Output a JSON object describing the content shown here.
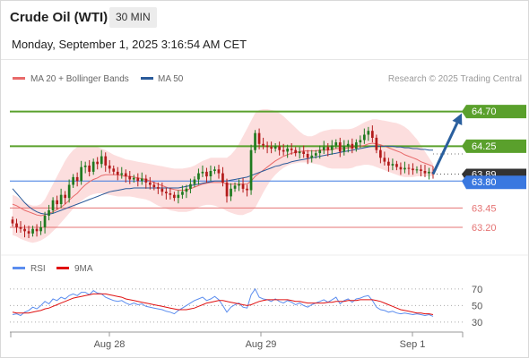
{
  "header": {
    "title": "Crude Oil (WTI)",
    "timeframe": "30 MIN",
    "datetime": "Monday, September 1, 2025 3:16:54 AM CET"
  },
  "colors": {
    "ma20": "#e86a6a",
    "ma50": "#2a5a9a",
    "bands_fill": "#fbd3d3",
    "resistance": "#5aa02c",
    "support_blue": "#3a78e0",
    "support_red": "#e57373",
    "candle_up": "#1f7a1f",
    "candle_down": "#b31b1b",
    "rsi": "#5b8def",
    "rsi_ma": "#e01010",
    "arrow": "#2a5f9e",
    "price_tag": "#333333"
  },
  "chart_data": [
    {
      "type": "candlestick",
      "legend": [
        {
          "label": "MA 20 + Bollinger Bands",
          "color": "#e86a6a"
        },
        {
          "label": "MA 50",
          "color": "#2a5a9a"
        }
      ],
      "watermark": "Research © 2025 Trading Central",
      "ylim": [
        62.84,
        65.02
      ],
      "x_ticks": [
        "Aug 28",
        "Aug 29",
        "Sep 1"
      ],
      "levels": [
        {
          "label": "64.70",
          "value": 64.7,
          "style": "resistance"
        },
        {
          "label": "64.25",
          "value": 64.25,
          "style": "resistance"
        },
        {
          "label": "63.80",
          "value": 63.8,
          "style": "support_blue"
        },
        {
          "label": "63.45",
          "value": 63.45,
          "style": "support_red"
        },
        {
          "label": "63.20",
          "value": 63.2,
          "style": "support_red"
        }
      ],
      "last_price": {
        "label": "63.89",
        "value": 63.89
      },
      "projection": {
        "from": 63.89,
        "to": 64.7
      },
      "closes": [
        63.25,
        63.2,
        63.18,
        63.15,
        63.12,
        63.18,
        63.15,
        63.2,
        63.35,
        63.42,
        63.55,
        63.5,
        63.62,
        63.58,
        63.75,
        63.85,
        63.8,
        63.98,
        64.0,
        63.92,
        64.05,
        64.02,
        64.12,
        64.0,
        63.96,
        63.92,
        63.88,
        63.9,
        63.86,
        63.82,
        63.84,
        63.8,
        63.83,
        63.78,
        63.75,
        63.72,
        63.7,
        63.66,
        63.64,
        63.62,
        63.58,
        63.62,
        63.66,
        63.7,
        63.76,
        63.82,
        63.9,
        63.92,
        63.86,
        63.93,
        63.95,
        63.9,
        63.78,
        63.6,
        63.7,
        63.74,
        63.76,
        63.7,
        63.68,
        64.2,
        64.42,
        64.28,
        64.26,
        64.24,
        64.22,
        64.25,
        64.2,
        64.18,
        64.22,
        64.2,
        64.16,
        64.18,
        64.15,
        64.1,
        64.13,
        64.16,
        64.2,
        64.24,
        64.2,
        64.26,
        64.3,
        64.18,
        64.25,
        64.28,
        64.22,
        64.3,
        64.33,
        64.4,
        64.45,
        64.36,
        64.2,
        64.1,
        64.05,
        64.0,
        64.02,
        63.98,
        63.95,
        63.97,
        63.96,
        63.94,
        63.95,
        63.93,
        63.9,
        63.92,
        63.89
      ],
      "ma20": [
        63.5,
        63.48,
        63.45,
        63.42,
        63.4,
        63.38,
        63.36,
        63.35,
        63.36,
        63.38,
        63.4,
        63.43,
        63.46,
        63.5,
        63.55,
        63.6,
        63.64,
        63.7,
        63.75,
        63.79,
        63.82,
        63.84,
        63.87,
        63.88,
        63.88,
        63.88,
        63.88,
        63.87,
        63.86,
        63.86,
        63.85,
        63.84,
        63.83,
        63.82,
        63.8,
        63.78,
        63.76,
        63.74,
        63.72,
        63.7,
        63.69,
        63.68,
        63.68,
        63.68,
        63.7,
        63.72,
        63.74,
        63.76,
        63.77,
        63.78,
        63.78,
        63.78,
        63.78,
        63.76,
        63.76,
        63.76,
        63.76,
        63.76,
        63.76,
        63.8,
        63.86,
        63.9,
        63.94,
        63.98,
        64.02,
        64.06,
        64.09,
        64.12,
        64.14,
        64.16,
        64.17,
        64.18,
        64.19,
        64.19,
        64.19,
        64.19,
        64.2,
        64.2,
        64.2,
        64.21,
        64.22,
        64.22,
        64.22,
        64.23,
        64.23,
        64.24,
        64.25,
        64.26,
        64.28,
        64.29,
        64.28,
        64.27,
        64.25,
        64.23,
        64.21,
        64.19,
        64.17,
        64.14,
        64.12,
        64.1,
        64.08,
        64.05,
        64.03,
        64.01,
        63.99
      ],
      "bb_upper": [
        63.62,
        63.6,
        63.56,
        63.52,
        63.5,
        63.48,
        63.48,
        63.5,
        63.56,
        63.66,
        63.76,
        63.86,
        63.96,
        64.06,
        64.14,
        64.2,
        64.24,
        64.26,
        64.26,
        64.26,
        64.25,
        64.24,
        64.22,
        64.2,
        64.17,
        64.14,
        64.12,
        64.1,
        64.08,
        64.07,
        64.06,
        64.05,
        64.04,
        64.03,
        64.02,
        64.01,
        64.0,
        63.99,
        63.98,
        63.97,
        63.96,
        63.96,
        63.96,
        63.97,
        63.98,
        64.0,
        64.03,
        64.06,
        64.08,
        64.1,
        64.1,
        64.1,
        64.1,
        64.1,
        64.14,
        64.2,
        64.28,
        64.38,
        64.48,
        64.58,
        64.68,
        64.72,
        64.73,
        64.73,
        64.72,
        64.71,
        64.68,
        64.64,
        64.59,
        64.54,
        64.49,
        64.44,
        64.4,
        64.38,
        64.38,
        64.4,
        64.43,
        64.45,
        64.46,
        64.47,
        64.47,
        64.47,
        64.47,
        64.47,
        64.48,
        64.5,
        64.53,
        64.56,
        64.58,
        64.6,
        64.6,
        64.59,
        64.58,
        64.57,
        64.56,
        64.55,
        64.53,
        64.5,
        64.46,
        64.4,
        64.34,
        64.26,
        64.18,
        64.1,
        64.02
      ],
      "bb_lower": [
        63.1,
        63.08,
        63.05,
        63.03,
        63.01,
        63.0,
        63.01,
        63.03,
        63.06,
        63.1,
        63.15,
        63.2,
        63.26,
        63.32,
        63.38,
        63.44,
        63.5,
        63.54,
        63.58,
        63.61,
        63.63,
        63.64,
        63.64,
        63.63,
        63.62,
        63.61,
        63.6,
        63.6,
        63.6,
        63.6,
        63.59,
        63.58,
        63.57,
        63.56,
        63.54,
        63.51,
        63.48,
        63.46,
        63.44,
        63.42,
        63.41,
        63.4,
        63.4,
        63.4,
        63.41,
        63.43,
        63.46,
        63.48,
        63.49,
        63.49,
        63.48,
        63.46,
        63.44,
        63.41,
        63.39,
        63.37,
        63.36,
        63.36,
        63.38,
        63.4,
        63.45,
        63.55,
        63.65,
        63.74,
        63.82,
        63.88,
        63.93,
        63.97,
        64.0,
        64.02,
        64.03,
        64.04,
        64.04,
        64.04,
        64.03,
        64.02,
        64.01,
        63.99,
        63.97,
        63.96,
        63.96,
        63.96,
        63.96,
        63.96,
        63.97,
        63.99,
        64.0,
        64.01,
        64.01,
        64.0,
        63.98,
        63.96,
        63.94,
        63.92,
        63.9,
        63.88,
        63.86,
        63.85,
        63.85,
        63.85,
        63.86,
        63.86,
        63.86,
        63.86,
        63.86
      ],
      "ma50": [
        63.7,
        63.64,
        63.58,
        63.52,
        63.47,
        63.43,
        63.4,
        63.38,
        63.37,
        63.37,
        63.38,
        63.4,
        63.42,
        63.44,
        63.46,
        63.48,
        63.5,
        63.52,
        63.54,
        63.56,
        63.58,
        63.6,
        63.62,
        63.64,
        63.66,
        63.67,
        63.68,
        63.69,
        63.7,
        63.7,
        63.71,
        63.71,
        63.71,
        63.71,
        63.71,
        63.71,
        63.71,
        63.71,
        63.71,
        63.71,
        63.71,
        63.71,
        63.72,
        63.73,
        63.74,
        63.75,
        63.76,
        63.77,
        63.78,
        63.79,
        63.8,
        63.8,
        63.8,
        63.8,
        63.81,
        63.82,
        63.83,
        63.84,
        63.85,
        63.87,
        63.89,
        63.91,
        63.93,
        63.95,
        63.97,
        63.99,
        64.0,
        64.02,
        64.03,
        64.05,
        64.06,
        64.07,
        64.08,
        64.09,
        64.1,
        64.11,
        64.12,
        64.13,
        64.14,
        64.15,
        64.16,
        64.17,
        64.18,
        64.19,
        64.2,
        64.21,
        64.22,
        64.23,
        64.24,
        64.25,
        64.25,
        64.25,
        64.25,
        64.25,
        64.25,
        64.24,
        64.24,
        64.23,
        64.23,
        64.22,
        64.22,
        64.21,
        64.21,
        64.2,
        64.2
      ]
    },
    {
      "type": "line",
      "legend": [
        {
          "label": "RSI",
          "color": "#5b8def"
        },
        {
          "label": "9MA",
          "color": "#e01010"
        }
      ],
      "ylim": [
        21.2,
        80.7
      ],
      "y_ticks": [
        "70",
        "50",
        "30"
      ],
      "series": [
        {
          "name": "RSI",
          "values": [
            39,
            40,
            38,
            42,
            44,
            48,
            46,
            50,
            55,
            52,
            58,
            56,
            60,
            58,
            62,
            64,
            62,
            66,
            66,
            63,
            68,
            65,
            64,
            60,
            58,
            56,
            55,
            56,
            53,
            51,
            53,
            51,
            52,
            49,
            48,
            47,
            46,
            45,
            43,
            42,
            40,
            44,
            47,
            50,
            53,
            56,
            58,
            60,
            56,
            58,
            61,
            57,
            50,
            42,
            48,
            51,
            53,
            48,
            47,
            63,
            70,
            60,
            58,
            57,
            55,
            58,
            55,
            53,
            56,
            54,
            51,
            53,
            50,
            48,
            51,
            53,
            55,
            57,
            54,
            57,
            60,
            52,
            56,
            58,
            54,
            58,
            59,
            61,
            62,
            56,
            48,
            45,
            44,
            42,
            43,
            41,
            40,
            41,
            40,
            39,
            40,
            39,
            38,
            39,
            37
          ]
        },
        {
          "name": "9MA",
          "values": [
            42,
            41,
            41,
            41,
            41,
            42,
            43,
            44,
            46,
            47,
            49,
            51,
            53,
            55,
            57,
            59,
            60,
            61,
            62,
            63,
            64,
            64,
            64,
            64,
            63,
            62,
            61,
            60,
            58,
            57,
            56,
            55,
            54,
            53,
            52,
            51,
            50,
            49,
            48,
            47,
            46,
            45,
            45,
            45,
            46,
            47,
            49,
            51,
            53,
            54,
            55,
            56,
            56,
            55,
            54,
            53,
            52,
            51,
            50,
            51,
            53,
            55,
            56,
            57,
            57,
            57,
            57,
            57,
            57,
            56,
            55,
            55,
            54,
            53,
            53,
            53,
            53,
            53,
            54,
            54,
            55,
            55,
            55,
            56,
            56,
            56,
            57,
            57,
            57,
            57,
            56,
            55,
            53,
            51,
            49,
            47,
            45,
            44,
            43,
            42,
            41,
            41,
            40,
            40,
            39
          ]
        }
      ]
    }
  ]
}
